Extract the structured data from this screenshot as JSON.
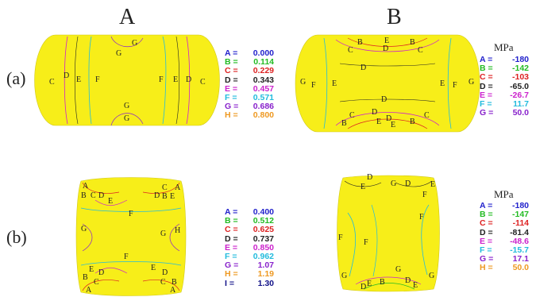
{
  "column_titles": [
    "A",
    "B"
  ],
  "row_labels": [
    "(a)",
    "(b)"
  ],
  "units": {
    "top_right": "MPa",
    "bottom_right": "MPa"
  },
  "colors": {
    "fill": "#f7ee19",
    "A": "#2222cc",
    "B": "#22bb22",
    "C": "#dd2222",
    "D": "#222222",
    "E": "#cc22cc",
    "F": "#22bbdd",
    "G": "#8822cc",
    "H": "#ee9922",
    "I": "#111188"
  },
  "legends": {
    "a_A": [
      {
        "key": "A =",
        "value": "0.000",
        "color": "#2222cc"
      },
      {
        "key": "B =",
        "value": "0.114",
        "color": "#22bb22"
      },
      {
        "key": "C =",
        "value": "0.229",
        "color": "#dd2222"
      },
      {
        "key": "D =",
        "value": "0.343",
        "color": "#222222"
      },
      {
        "key": "E =",
        "value": "0.457",
        "color": "#cc22cc"
      },
      {
        "key": "F =",
        "value": "0.571",
        "color": "#22bbdd"
      },
      {
        "key": "G =",
        "value": "0.686",
        "color": "#8822cc"
      },
      {
        "key": "H =",
        "value": "0.800",
        "color": "#ee9922"
      }
    ],
    "a_B": [
      {
        "key": "A =",
        "value": "-180",
        "color": "#2222cc"
      },
      {
        "key": "B =",
        "value": "-142",
        "color": "#22bb22"
      },
      {
        "key": "C =",
        "value": "-103",
        "color": "#dd2222"
      },
      {
        "key": "D =",
        "value": "-65.0",
        "color": "#222222"
      },
      {
        "key": "E =",
        "value": "-26.7",
        "color": "#cc22cc"
      },
      {
        "key": "F =",
        "value": "11.7",
        "color": "#22bbdd"
      },
      {
        "key": "G =",
        "value": "50.0",
        "color": "#8822cc"
      }
    ],
    "b_A": [
      {
        "key": "A =",
        "value": "0.400",
        "color": "#2222cc"
      },
      {
        "key": "B =",
        "value": "0.512",
        "color": "#22bb22"
      },
      {
        "key": "C =",
        "value": "0.625",
        "color": "#dd2222"
      },
      {
        "key": "D =",
        "value": "0.737",
        "color": "#222222"
      },
      {
        "key": "E =",
        "value": "0.850",
        "color": "#cc22cc"
      },
      {
        "key": "F =",
        "value": "0.962",
        "color": "#22bbdd"
      },
      {
        "key": "G =",
        "value": "1.07",
        "color": "#8822cc"
      },
      {
        "key": "H =",
        "value": "1.19",
        "color": "#ee9922"
      },
      {
        "key": "I =",
        "value": "1.30",
        "color": "#111188"
      }
    ],
    "b_B": [
      {
        "key": "A =",
        "value": "-180",
        "color": "#2222cc"
      },
      {
        "key": "B =",
        "value": "-147",
        "color": "#22bb22"
      },
      {
        "key": "C =",
        "value": "-114",
        "color": "#dd2222"
      },
      {
        "key": "D =",
        "value": "-81.4",
        "color": "#222222"
      },
      {
        "key": "E =",
        "value": "-48.6",
        "color": "#cc22cc"
      },
      {
        "key": "F =",
        "value": "-15.7",
        "color": "#22bbdd"
      },
      {
        "key": "G =",
        "value": "17.1",
        "color": "#8822cc"
      },
      {
        "key": "H =",
        "value": "50.0",
        "color": "#ee9922"
      }
    ]
  },
  "contour_letters": {
    "aA": [
      "G",
      "G",
      "C",
      "D",
      "E",
      "F",
      "F",
      "E",
      "D",
      "C",
      "G",
      "G"
    ],
    "aB": [
      "B",
      "C",
      "E",
      "D",
      "B",
      "C",
      "D",
      "G",
      "F",
      "E",
      "D",
      "E",
      "F",
      "G",
      "D",
      "B",
      "C",
      "E",
      "D",
      "E",
      "B",
      "C"
    ],
    "bA": [
      "A",
      "B",
      "C",
      "D",
      "E",
      "A",
      "C",
      "B",
      "D",
      "E",
      "F",
      "G",
      "G",
      "H",
      "F",
      "D",
      "E",
      "C",
      "B",
      "A",
      "A",
      "B",
      "C",
      "D",
      "E"
    ],
    "bB": [
      "D",
      "E",
      "G",
      "D",
      "E",
      "F",
      "F",
      "F",
      "F",
      "G",
      "D",
      "E",
      "G",
      "B",
      "D",
      "E",
      "G"
    ]
  }
}
